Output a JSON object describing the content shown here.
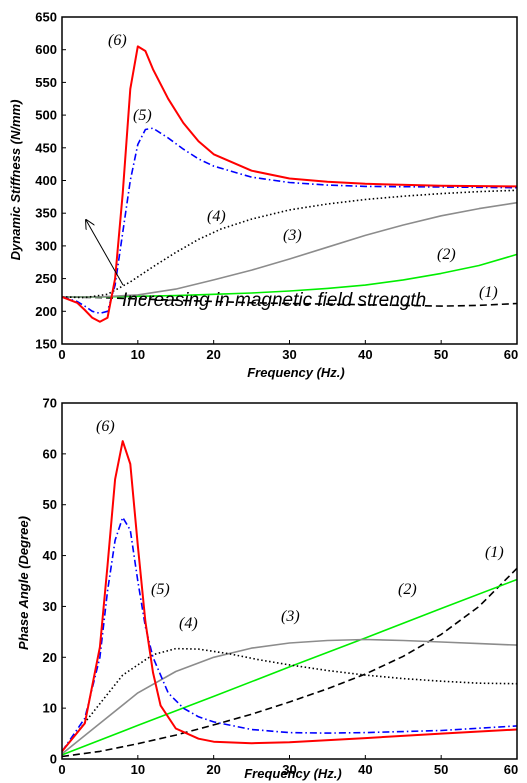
{
  "chart_data": [
    {
      "type": "line",
      "xlabel": "Frequency  (Hz.)",
      "ylabel": "Dynamic Stiffness (N/mm)",
      "xlim": [
        0,
        60
      ],
      "ylim": [
        150,
        650
      ],
      "xticks": [
        0,
        10,
        20,
        30,
        40,
        50,
        60
      ],
      "yticks": [
        150,
        200,
        250,
        300,
        350,
        400,
        450,
        500,
        550,
        600,
        650
      ],
      "grid": false,
      "annotation": "Increasing in magnetic field strength",
      "series": [
        {
          "name": "(1)",
          "color": "#000000",
          "dash": "dashed",
          "points": [
            [
              0,
              222
            ],
            [
              5,
              221
            ],
            [
              10,
              219
            ],
            [
              15,
              217
            ],
            [
              20,
              215
            ],
            [
              25,
              213
            ],
            [
              30,
              212
            ],
            [
              35,
              211
            ],
            [
              40,
              210
            ],
            [
              45,
              209
            ],
            [
              50,
              208
            ],
            [
              55,
              209
            ],
            [
              60,
              212
            ]
          ]
        },
        {
          "name": "(2)",
          "color": "#00ee00",
          "dash": "solid",
          "points": [
            [
              0,
              222
            ],
            [
              5,
              222
            ],
            [
              10,
              223
            ],
            [
              15,
              224
            ],
            [
              20,
              226
            ],
            [
              25,
              228
            ],
            [
              30,
              231
            ],
            [
              35,
              235
            ],
            [
              40,
              240
            ],
            [
              45,
              248
            ],
            [
              50,
              258
            ],
            [
              55,
              270
            ],
            [
              60,
              287
            ]
          ]
        },
        {
          "name": "(3)",
          "color": "#8c8c8c",
          "dash": "solid",
          "points": [
            [
              0,
              222
            ],
            [
              5,
              222
            ],
            [
              10,
              225
            ],
            [
              15,
              234
            ],
            [
              20,
              248
            ],
            [
              25,
              263
            ],
            [
              30,
              280
            ],
            [
              35,
              298
            ],
            [
              40,
              316
            ],
            [
              45,
              332
            ],
            [
              50,
              346
            ],
            [
              55,
              357
            ],
            [
              60,
              366
            ]
          ]
        },
        {
          "name": "(4)",
          "color": "#000000",
          "dash": "dotted",
          "points": [
            [
              0,
              222
            ],
            [
              3,
              221
            ],
            [
              6,
              226
            ],
            [
              9,
              245
            ],
            [
              12,
              268
            ],
            [
              15,
              290
            ],
            [
              18,
              310
            ],
            [
              21,
              326
            ],
            [
              25,
              341
            ],
            [
              30,
              355
            ],
            [
              35,
              364
            ],
            [
              40,
              371
            ],
            [
              45,
              376
            ],
            [
              50,
              380
            ],
            [
              55,
              383
            ],
            [
              60,
              385
            ]
          ]
        },
        {
          "name": "(5)",
          "color": "#0000ff",
          "dash": "dashdot",
          "points": [
            [
              0,
              222
            ],
            [
              2,
              215
            ],
            [
              3,
              208
            ],
            [
              4,
              200
            ],
            [
              5,
              197
            ],
            [
              6,
              200
            ],
            [
              7,
              240
            ],
            [
              8,
              320
            ],
            [
              9,
              400
            ],
            [
              10,
              455
            ],
            [
              11,
              478
            ],
            [
              12,
              480
            ],
            [
              14,
              465
            ],
            [
              16,
              448
            ],
            [
              18,
              433
            ],
            [
              20,
              422
            ],
            [
              25,
              405
            ],
            [
              30,
              397
            ],
            [
              35,
              393
            ],
            [
              40,
              391
            ],
            [
              50,
              390
            ],
            [
              60,
              389
            ]
          ]
        },
        {
          "name": "(6)",
          "color": "#ff0000",
          "dash": "solid",
          "points": [
            [
              0,
              222
            ],
            [
              2,
              213
            ],
            [
              3,
              202
            ],
            [
              4,
              190
            ],
            [
              5,
              184
            ],
            [
              6,
              190
            ],
            [
              7,
              250
            ],
            [
              8,
              380
            ],
            [
              9,
              540
            ],
            [
              10,
              605
            ],
            [
              11,
              598
            ],
            [
              12,
              570
            ],
            [
              14,
              525
            ],
            [
              16,
              488
            ],
            [
              18,
              460
            ],
            [
              20,
              440
            ],
            [
              25,
              415
            ],
            [
              30,
              403
            ],
            [
              35,
              398
            ],
            [
              40,
              395
            ],
            [
              50,
              392
            ],
            [
              60,
              391
            ]
          ]
        }
      ]
    },
    {
      "type": "line",
      "xlabel": "Frequency (Hz.)",
      "ylabel": "Phase Angle (Degree)",
      "xlim": [
        0,
        60
      ],
      "ylim": [
        0,
        70
      ],
      "xticks": [
        0,
        10,
        20,
        30,
        40,
        50,
        60
      ],
      "yticks": [
        0,
        10,
        20,
        30,
        40,
        50,
        60,
        70
      ],
      "grid": false,
      "series": [
        {
          "name": "(1)",
          "color": "#000000",
          "dash": "dashed",
          "points": [
            [
              0,
              0.5
            ],
            [
              5,
              1.5
            ],
            [
              10,
              3
            ],
            [
              15,
              4.7
            ],
            [
              20,
              6.7
            ],
            [
              25,
              8.8
            ],
            [
              30,
              11.2
            ],
            [
              35,
              13.8
            ],
            [
              40,
              16.7
            ],
            [
              45,
              20.2
            ],
            [
              50,
              24.5
            ],
            [
              55,
              30
            ],
            [
              60,
              37.5
            ]
          ]
        },
        {
          "name": "(2)",
          "color": "#00ee00",
          "dash": "solid",
          "points": [
            [
              0,
              0.8
            ],
            [
              10,
              6.6
            ],
            [
              20,
              12.3
            ],
            [
              30,
              18.1
            ],
            [
              40,
              23.8
            ],
            [
              50,
              29.6
            ],
            [
              60,
              35.3
            ]
          ]
        },
        {
          "name": "(3)",
          "color": "#8c8c8c",
          "dash": "solid",
          "points": [
            [
              0,
              1
            ],
            [
              5,
              7
            ],
            [
              10,
              13
            ],
            [
              15,
              17.2
            ],
            [
              20,
              20
            ],
            [
              25,
              21.8
            ],
            [
              30,
              22.8
            ],
            [
              35,
              23.3
            ],
            [
              40,
              23.5
            ],
            [
              45,
              23.3
            ],
            [
              50,
              23
            ],
            [
              55,
              22.7
            ],
            [
              60,
              22.4
            ]
          ]
        },
        {
          "name": "(4)",
          "color": "#000000",
          "dash": "dotted",
          "points": [
            [
              0,
              1.5
            ],
            [
              4,
              9
            ],
            [
              8,
              16.5
            ],
            [
              12,
              20.5
            ],
            [
              15,
              21.7
            ],
            [
              18,
              21.6
            ],
            [
              22,
              20.7
            ],
            [
              26,
              19.5
            ],
            [
              30,
              18.5
            ],
            [
              35,
              17.4
            ],
            [
              40,
              16.5
            ],
            [
              45,
              15.8
            ],
            [
              50,
              15.3
            ],
            [
              55,
              14.9
            ],
            [
              60,
              14.8
            ]
          ]
        },
        {
          "name": "(5)",
          "color": "#0000ff",
          "dash": "dashdot",
          "points": [
            [
              0,
              1.5
            ],
            [
              3,
              8
            ],
            [
              5,
              20
            ],
            [
              6,
              33
            ],
            [
              7,
              43
            ],
            [
              8,
              47.5
            ],
            [
              9,
              45
            ],
            [
              10,
              35
            ],
            [
              11,
              26
            ],
            [
              12,
              20
            ],
            [
              14,
              13
            ],
            [
              16,
              10
            ],
            [
              18,
              8.3
            ],
            [
              20,
              7.3
            ],
            [
              25,
              5.8
            ],
            [
              30,
              5.2
            ],
            [
              35,
              5.1
            ],
            [
              40,
              5.2
            ],
            [
              50,
              5.6
            ],
            [
              60,
              6.5
            ]
          ]
        },
        {
          "name": "(6)",
          "color": "#ff0000",
          "dash": "solid",
          "points": [
            [
              0,
              1.5
            ],
            [
              3,
              7
            ],
            [
              5,
              22
            ],
            [
              6,
              38
            ],
            [
              7,
              55
            ],
            [
              8,
              62.5
            ],
            [
              9,
              58
            ],
            [
              10,
              42
            ],
            [
              11,
              27
            ],
            [
              12,
              17
            ],
            [
              13,
              10.5
            ],
            [
              15,
              6
            ],
            [
              18,
              4
            ],
            [
              20,
              3.4
            ],
            [
              25,
              3.1
            ],
            [
              30,
              3.3
            ],
            [
              40,
              4.1
            ],
            [
              50,
              5
            ],
            [
              60,
              5.8
            ]
          ]
        }
      ]
    }
  ]
}
